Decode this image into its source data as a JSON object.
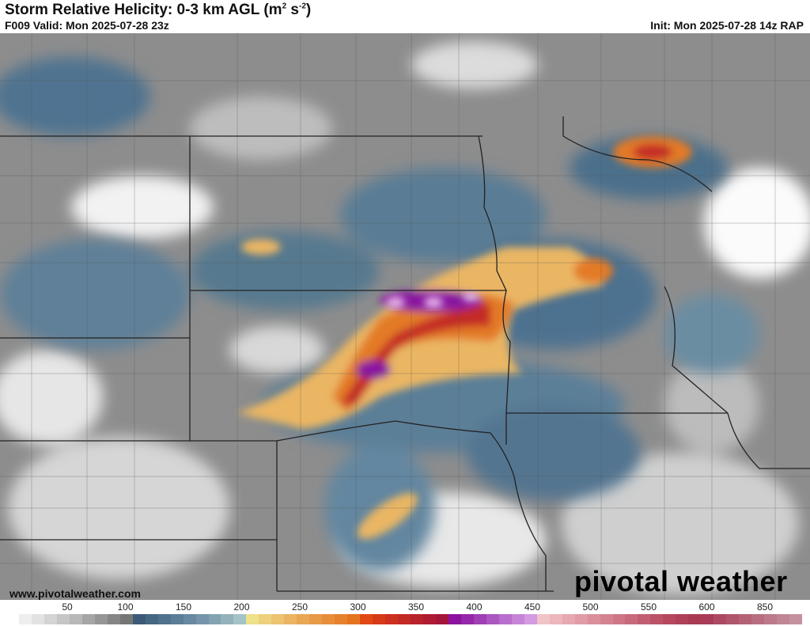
{
  "header": {
    "title": "Storm Relative Helicity: 0-3 km AGL (m",
    "title_sup1": "2",
    "title_mid": " s",
    "title_sup2": "-2",
    "title_end": ")",
    "valid": "F009 Valid: Mon 2025-07-28 23z",
    "init": "Init: Mon 2025-07-28 14z RAP"
  },
  "footer": {
    "url": "www.pivotalweather.com",
    "logo": "pivotal weather"
  },
  "colorbar": {
    "labels": [
      "50",
      "100",
      "150",
      "200",
      "250",
      "300",
      "350",
      "400",
      "450",
      "500",
      "550",
      "600",
      "850"
    ],
    "colors": [
      "#ffffff",
      "#eeeeee",
      "#e2e2e2",
      "#d4d4d4",
      "#c6c6c6",
      "#b8b8b8",
      "#a6a6a6",
      "#969696",
      "#868686",
      "#767676",
      "#3c5a78",
      "#456782",
      "#50728c",
      "#5b7e96",
      "#6889a0",
      "#7695aa",
      "#84a3b2",
      "#93b2bc",
      "#a3c3c8",
      "#efe08a",
      "#eed17c",
      "#ecc36e",
      "#ebb462",
      "#e9a756",
      "#e89a48",
      "#e78e3a",
      "#e6822c",
      "#e5741f",
      "#e04a12",
      "#d63a18",
      "#cc301e",
      "#c22a24",
      "#b8222a",
      "#ae1c32",
      "#a4163a",
      "#8e12a0",
      "#9626aa",
      "#a03eb4",
      "#ac56c0",
      "#b86ecc",
      "#c684d6",
      "#d49ae2",
      "#f0c4c8",
      "#ecb6bc",
      "#e6a8b2",
      "#e09ca6",
      "#da8e9c",
      "#d48290",
      "#ce7686",
      "#c86a7c",
      "#c25e72",
      "#bc5268",
      "#b6485e",
      "#b04058",
      "#aa3a54",
      "#a83c56",
      "#ac4a62",
      "#b0566c",
      "#b46276",
      "#b86e80",
      "#bc7a8a",
      "#c08694",
      "#c4929e"
    ]
  }
}
